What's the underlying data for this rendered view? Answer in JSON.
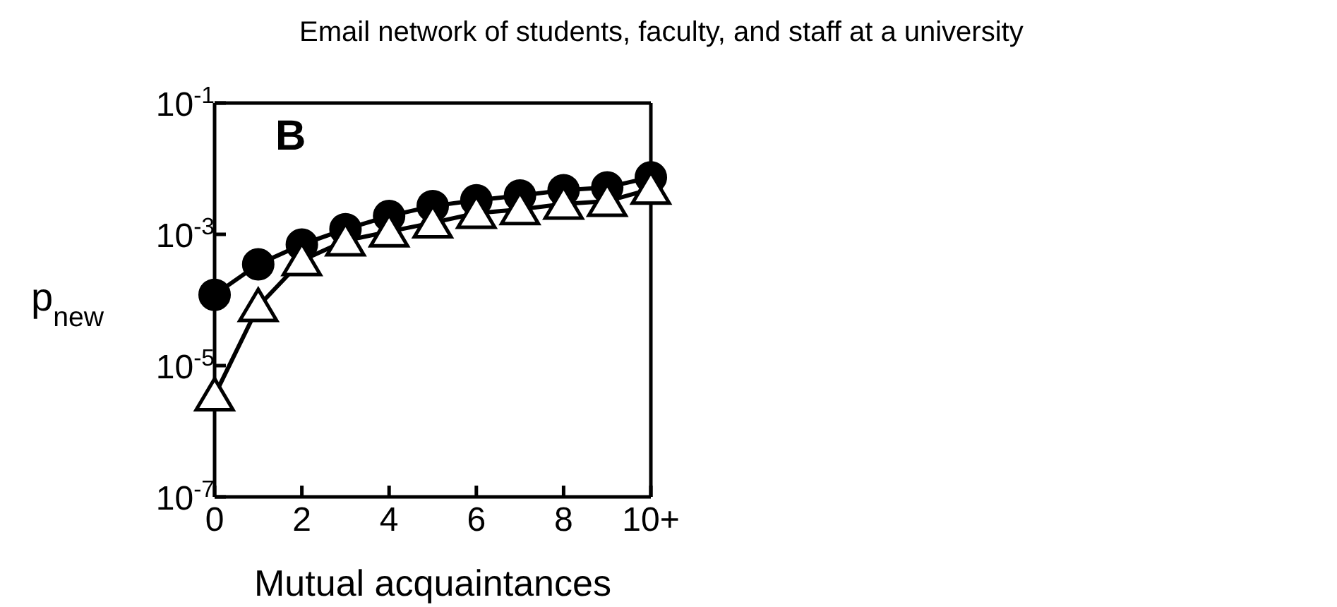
{
  "chart_data": {
    "type": "line",
    "title": "Email network of students, faculty, and staff at a university",
    "xlabel": "Mutual acquaintances",
    "ylabel": "p$_{new}$",
    "annotations": [
      "B"
    ],
    "x": [
      0,
      1,
      2,
      3,
      4,
      5,
      6,
      7,
      8,
      9,
      10
    ],
    "series": [
      {
        "color": "#000000",
        "marker": "circle",
        "values": [
          0.00012,
          0.00035,
          0.0007,
          0.0012,
          0.0019,
          0.0027,
          0.0033,
          0.0039,
          0.0047,
          0.0052,
          0.0074
        ]
      },
      {
        "color": "#000000",
        "marker": "triangle",
        "values": [
          3.5e-06,
          8e-05,
          0.0004,
          0.0008,
          0.0011,
          0.0015,
          0.0021,
          0.0024,
          0.0029,
          0.0032,
          0.0049
        ]
      }
    ],
    "log": "y",
    "grid": false,
    "legend": false,
    "line_style": "solid",
    "xlim": [
      0,
      10
    ],
    "xticks": [
      0,
      2,
      4,
      6,
      8,
      {
        "value": 10,
        "label": "10+"
      }
    ],
    "ylim": [
      1e-07,
      0.1
    ],
    "yticks": [
      {
        "value": 1e-07,
        "label": "10$^{-7}$"
      },
      {
        "value": 1e-05,
        "label": "10$^{-5}$"
      },
      {
        "value": 0.001,
        "label": "10$^{-3}$"
      },
      {
        "value": 0.1,
        "label": "10$^{-1}$"
      }
    ]
  }
}
